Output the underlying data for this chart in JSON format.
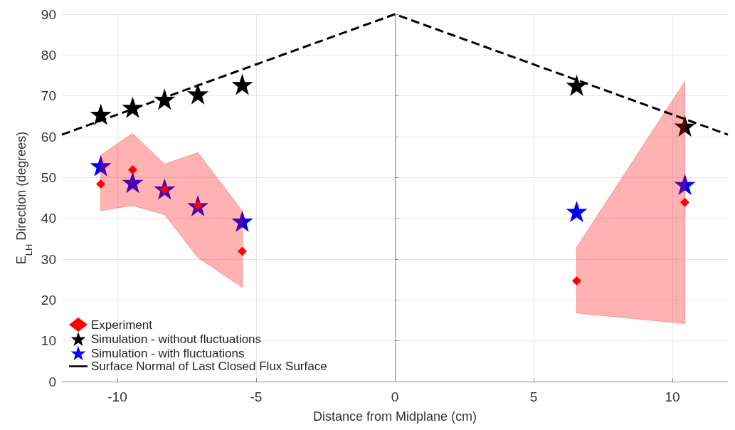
{
  "chart_data": {
    "type": "scatter",
    "xlabel": "Distance from Midplane (cm)",
    "ylabel": "E$_{LH}$ Direction (degrees)",
    "xlim": [
      -12,
      12
    ],
    "xticks": [
      -10,
      -5,
      0,
      5,
      10
    ],
    "ylim": [
      0,
      90
    ],
    "yticks": [
      0,
      10,
      20,
      30,
      40,
      50,
      60,
      70,
      80,
      90
    ],
    "grid": true,
    "legend": "bottom left",
    "series": [
      {
        "name": "Experiment",
        "marker": "diamond",
        "color": "#ff0000",
        "x": [
          -10.6,
          -9.45,
          -8.3,
          -7.1,
          -5.5,
          6.55,
          10.45
        ],
        "values": [
          48.4,
          51.9,
          47.1,
          43.2,
          31.9,
          24.7,
          43.9
        ],
        "lower": [
          41.9,
          43.1,
          40.9,
          30.4,
          23.1,
          16.8,
          14.2
        ],
        "upper": [
          55.5,
          60.8,
          53.3,
          56.1,
          41.8,
          32.9,
          73.5
        ]
      },
      {
        "name": "Simulation - without fluctuations",
        "marker": "star",
        "color": "#000000",
        "x": [
          -10.6,
          -9.45,
          -8.3,
          -7.1,
          -5.5,
          6.55,
          10.45
        ],
        "values": [
          65.5,
          67.2,
          69.2,
          70.5,
          72.8,
          72.6,
          62.6
        ]
      },
      {
        "name": "Simulation - with fluctuations",
        "marker": "star",
        "color": "#0000ff",
        "x": [
          -10.6,
          -9.45,
          -8.3,
          -7.1,
          -5.5,
          6.55,
          10.45
        ],
        "values": [
          52.9,
          48.8,
          47.2,
          43.1,
          39.3,
          41.7,
          48.3
        ]
      },
      {
        "name": "Surface Normal of Last Closed Flux Surface",
        "type": "line",
        "marker": "none",
        "line_style": "dashed",
        "color": "#000000",
        "x": [
          -12,
          0,
          12
        ],
        "values": [
          60.5,
          90,
          60.5
        ]
      }
    ]
  }
}
